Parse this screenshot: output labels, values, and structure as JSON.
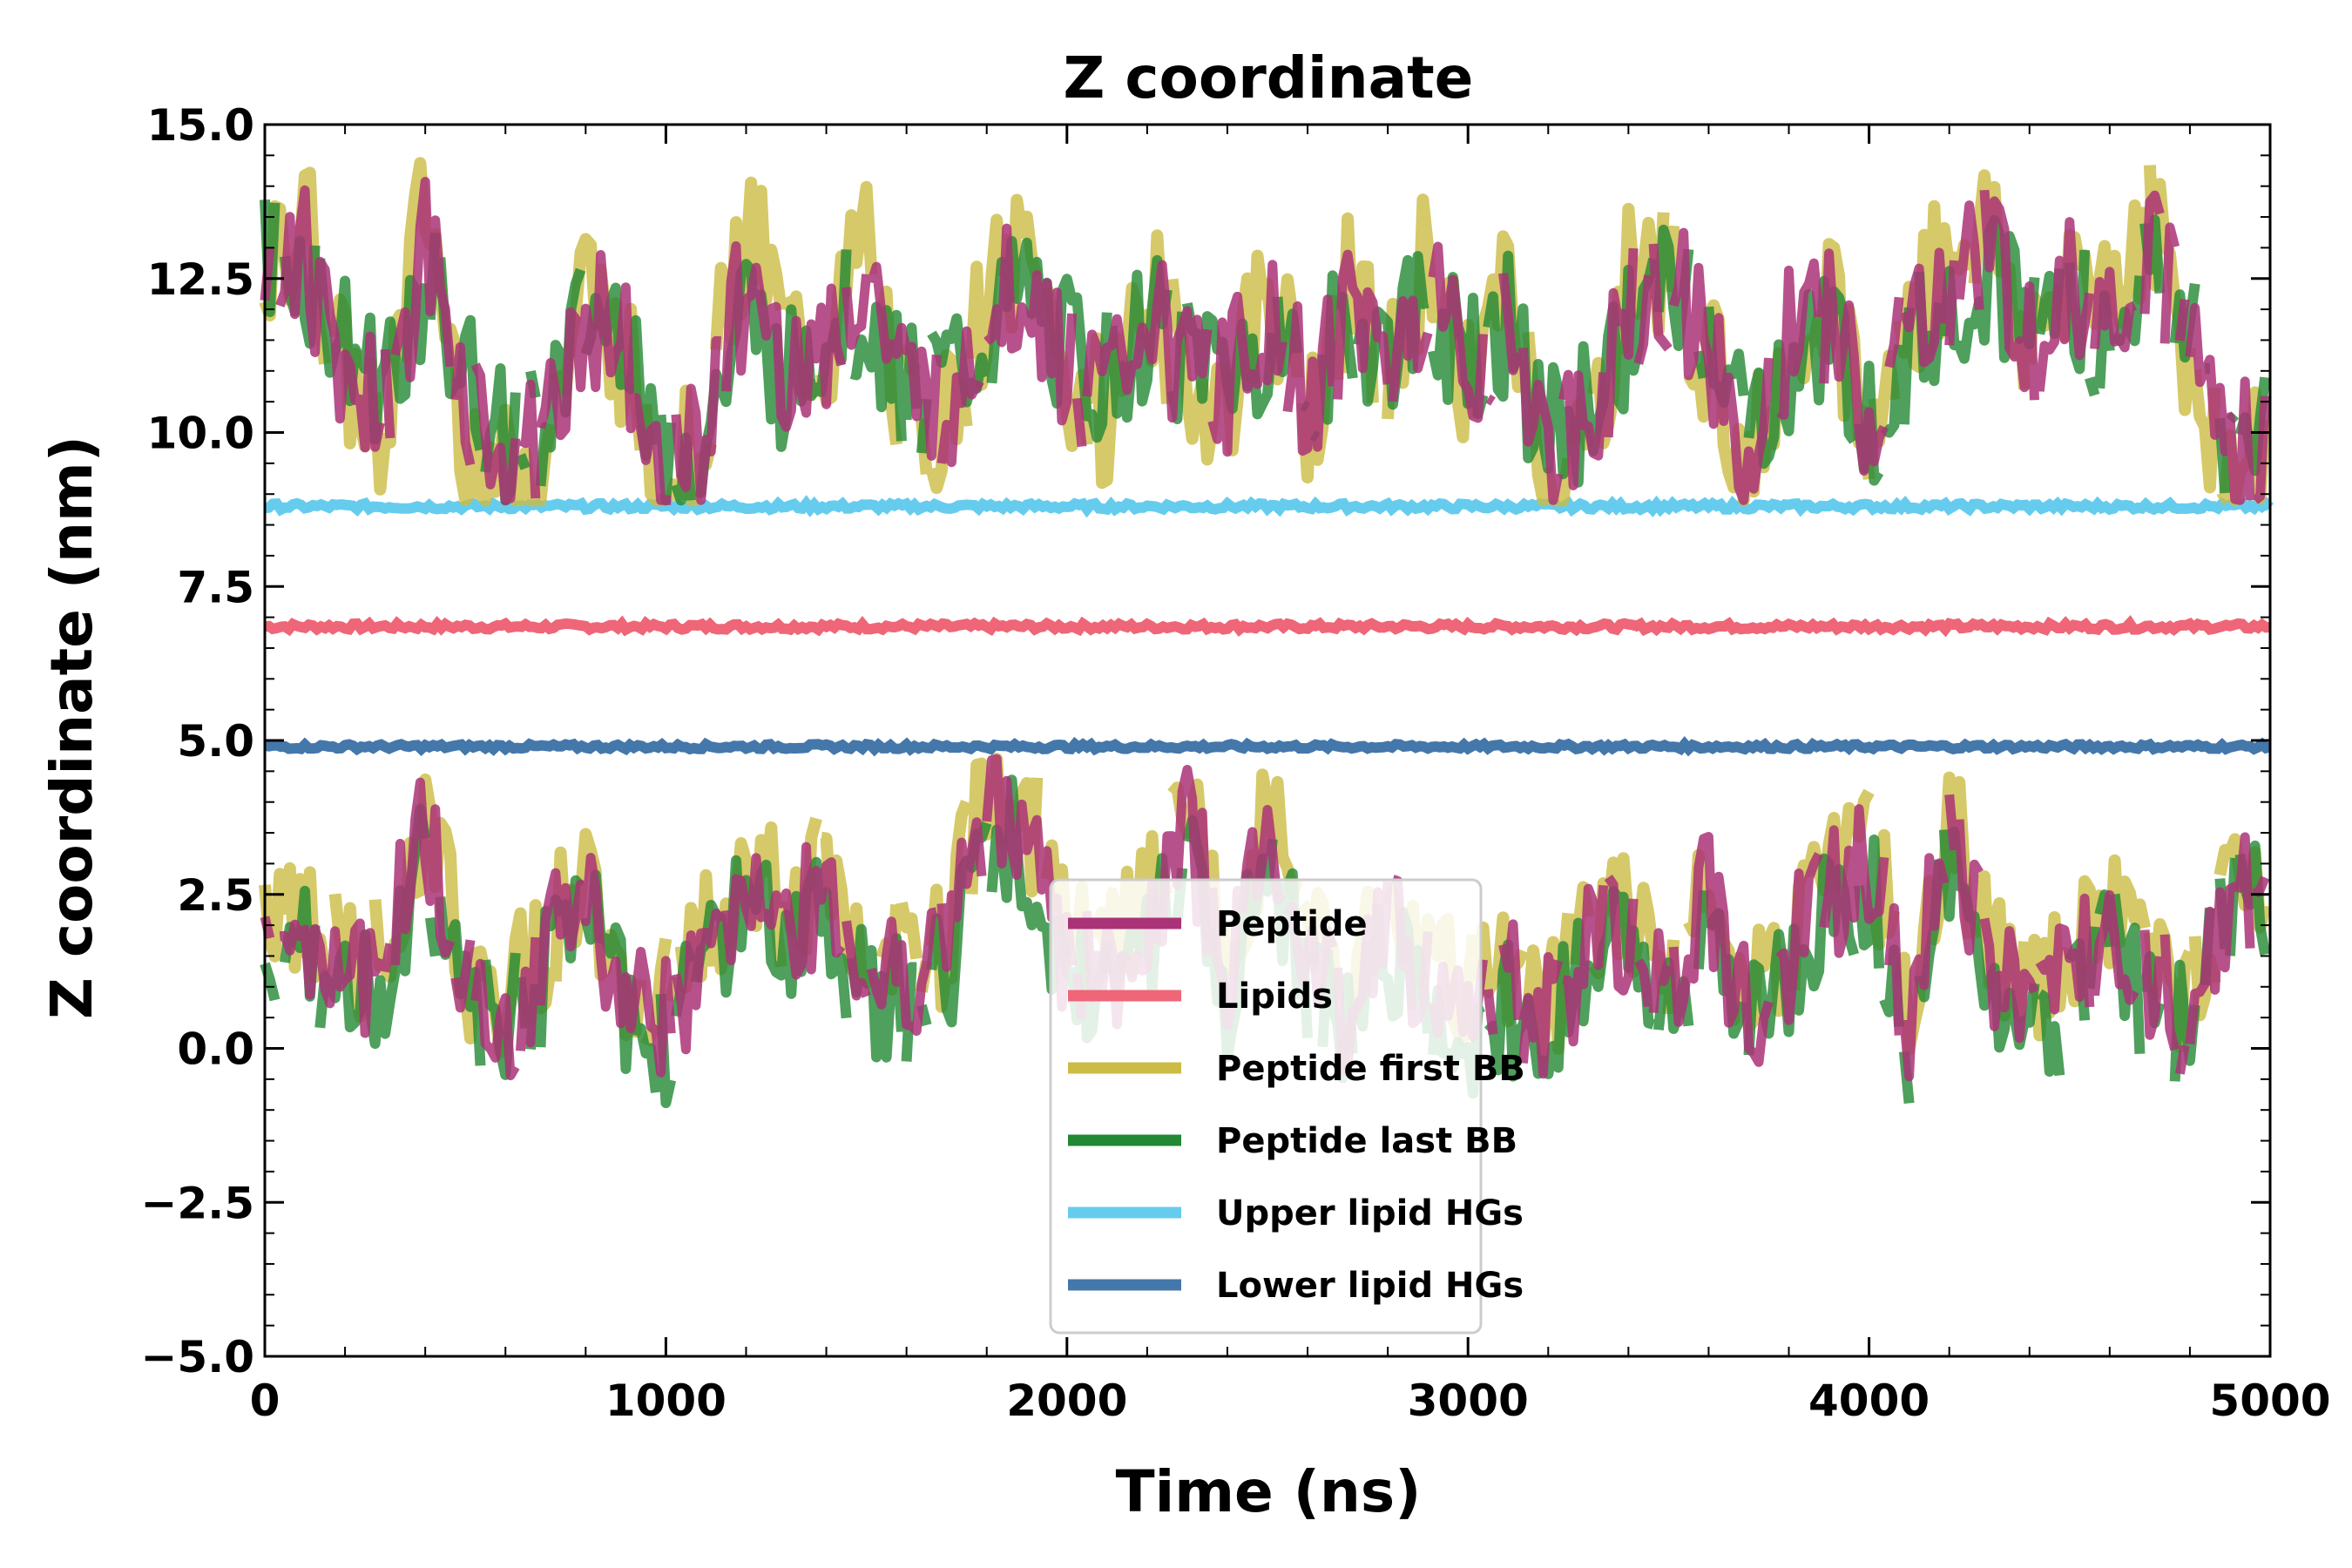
{
  "chart_data": {
    "type": "line",
    "title": "Z coordinate",
    "xlabel": "Time (ns)",
    "ylabel": "Z coordinate (nm)",
    "xlim": [
      0,
      5000
    ],
    "ylim": [
      -5.0,
      15.0
    ],
    "xticks": [
      0,
      1000,
      2000,
      3000,
      4000,
      5000
    ],
    "xtick_labels": [
      "0",
      "1000",
      "2000",
      "3000",
      "4000",
      "5000"
    ],
    "yticks": [
      -5.0,
      -2.5,
      0.0,
      2.5,
      5.0,
      7.5,
      10.0,
      12.5,
      15.0
    ],
    "ytick_labels": [
      "−5.0",
      "−2.5",
      "0.0",
      "2.5",
      "5.0",
      "7.5",
      "10.0",
      "12.5",
      "15.0"
    ],
    "grid": false,
    "legend_position": "lower-center",
    "series": [
      {
        "name": "Peptide",
        "color": "#aa3377",
        "style": "solid",
        "x": [
          0,
          100,
          200,
          300,
          400,
          500,
          600,
          700,
          800,
          900,
          1000,
          1100,
          1200,
          1300,
          1400,
          1500,
          1600,
          1700,
          1800,
          1900,
          2000,
          2100,
          2200,
          2300,
          2400,
          2500,
          2600,
          2700,
          2800,
          2900,
          3000,
          3100,
          3200,
          3300,
          3400,
          3500,
          3600,
          3700,
          3800,
          3900,
          4000,
          4100,
          4200,
          4300,
          4400,
          4500,
          4600,
          4700,
          4800,
          4900,
          5000
        ],
        "y": [
          12.5,
          13.0,
          11.0,
          10.5,
          13.0,
          10.5,
          9.5,
          10.0,
          12.0,
          11.5,
          9.3,
          10.0,
          12.5,
          11.0,
          11.5,
          12.5,
          10.5,
          10.5,
          11.8,
          12.5,
          11.0,
          10.5,
          12.0,
          11.0,
          10.8,
          12.0,
          10.5,
          12.0,
          11.0,
          12.5,
          11.0,
          12.0,
          9.5,
          10.0,
          12.0,
          12.5,
          11.5,
          9.5,
          11.5,
          12.0,
          10.0,
          11.5,
          12.5,
          13.0,
          11.5,
          12.5,
          12.0,
          13.0,
          11.5,
          9.5,
          10.0
        ]
      },
      {
        "name": "Lipids",
        "color": "#ee6677",
        "style": "solid",
        "y_mean": 6.85,
        "y_noise": 0.05
      },
      {
        "name": "Peptide first BB",
        "color": "#ccbb44",
        "style": "solid",
        "x": [
          0,
          100,
          200,
          300,
          400,
          500,
          600,
          700,
          800,
          900,
          1000,
          1100,
          1200,
          1300,
          1400,
          1500,
          1600,
          1700,
          1800,
          1900,
          2000,
          2100,
          2200,
          2300,
          2400,
          2500,
          2600,
          2700,
          2800,
          2900,
          3000,
          3100,
          3200,
          3300,
          3400,
          3500,
          3600,
          3700,
          3800,
          3900,
          4000,
          4100,
          4200,
          4300,
          4400,
          4500,
          4600,
          4700,
          4800,
          4900,
          5000
        ],
        "y": [
          12.3,
          13.5,
          10.8,
          10.2,
          13.8,
          10.0,
          9.2,
          9.8,
          12.5,
          11.2,
          9.1,
          10.3,
          13.5,
          11.5,
          11.2,
          13.2,
          10.2,
          10.2,
          12.2,
          12.8,
          10.7,
          10.3,
          12.4,
          10.8,
          10.5,
          12.5,
          10.2,
          12.4,
          10.7,
          13.0,
          10.8,
          12.3,
          9.2,
          9.7,
          12.5,
          12.8,
          11.2,
          9.2,
          11.8,
          12.5,
          9.7,
          11.8,
          13.0,
          13.4,
          11.2,
          12.9,
          12.4,
          13.5,
          11.2,
          9.2,
          9.7
        ]
      },
      {
        "name": "Peptide last BB",
        "color": "#228833",
        "style": "solid",
        "x": [
          0,
          100,
          200,
          300,
          400,
          500,
          600,
          700,
          800,
          900,
          1000,
          1100,
          1200,
          1300,
          1400,
          1500,
          1600,
          1700,
          1800,
          1900,
          2000,
          2100,
          2200,
          2300,
          2400,
          2500,
          2600,
          2700,
          2800,
          2900,
          3000,
          3100,
          3200,
          3300,
          3400,
          3500,
          3600,
          3700,
          3800,
          3900,
          4000,
          4100,
          4200,
          4300,
          4400,
          4500,
          4600,
          4700,
          4800,
          4900,
          5000
        ],
        "y": [
          12.8,
          12.6,
          11.3,
          10.8,
          12.5,
          10.8,
          9.8,
          10.3,
          11.7,
          11.8,
          9.5,
          9.8,
          12.0,
          10.7,
          11.8,
          12.0,
          10.8,
          10.8,
          11.5,
          12.2,
          11.3,
          10.8,
          11.7,
          11.3,
          11.1,
          11.6,
          10.8,
          11.7,
          11.3,
          12.1,
          11.3,
          11.7,
          9.8,
          10.3,
          11.6,
          12.2,
          11.8,
          9.8,
          11.2,
          11.6,
          10.3,
          11.2,
          12.1,
          12.6,
          11.8,
          12.1,
          11.6,
          12.6,
          11.8,
          9.8,
          10.3
        ]
      },
      {
        "name": "Upper lipid HGs",
        "color": "#66ccee",
        "style": "solid",
        "y_mean": 8.8,
        "y_noise": 0.05
      },
      {
        "name": "Lower lipid HGs",
        "color": "#4477aa",
        "style": "solid",
        "y_mean": 4.9,
        "y_noise": 0.04
      }
    ],
    "lower_leaflet_excursions": {
      "note_free": true,
      "x": [
        0,
        100,
        200,
        300,
        400,
        500,
        600,
        700,
        800,
        900,
        1000,
        1100,
        1200,
        1300,
        1400,
        1500,
        1600,
        1700,
        1800,
        1900,
        2000,
        2100,
        2200,
        2300,
        2400,
        2500,
        2600,
        2700,
        2800,
        2900,
        3000,
        3100,
        3200,
        3300,
        3400,
        3500,
        3600,
        3700,
        3800,
        3900,
        4000,
        4100,
        4200,
        4300,
        4400,
        4500,
        4600,
        4700,
        4800,
        4900,
        5000
      ],
      "y": [
        1.5,
        2.0,
        1.0,
        1.5,
        3.5,
        1.0,
        0.5,
        1.5,
        2.5,
        1.0,
        0.5,
        1.5,
        3.0,
        2.0,
        2.5,
        1.0,
        1.0,
        1.5,
        4.0,
        3.5,
        1.5,
        1.0,
        2.0,
        3.8,
        1.0,
        3.5,
        1.5,
        0.5,
        2.0,
        1.0,
        0.5,
        1.0,
        0.5,
        1.5,
        2.0,
        1.0,
        2.5,
        0.5,
        1.5,
        2.5,
        3.0,
        0.5,
        3.5,
        1.5,
        0.5,
        1.0,
        2.0,
        1.0,
        0.5,
        2.5,
        2.5
      ]
    }
  }
}
